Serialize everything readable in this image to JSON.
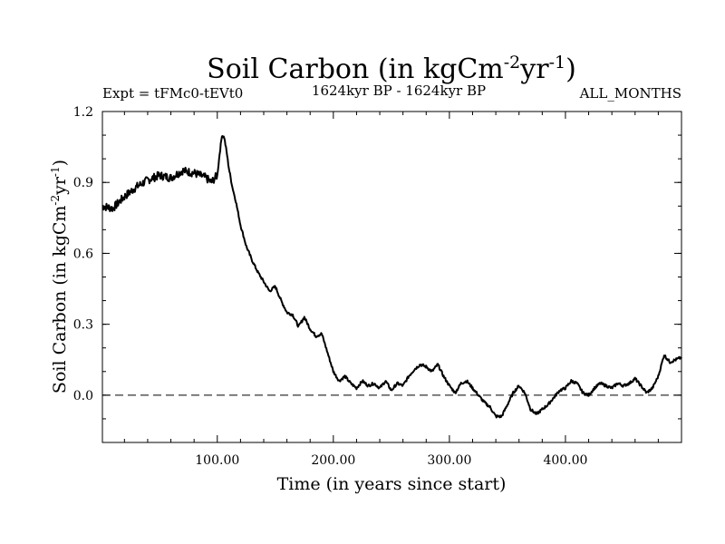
{
  "chart_data": {
    "type": "line",
    "title": "Soil Carbon (in kgCm",
    "title_sup1": "-2",
    "title_mid": "yr",
    "title_sup2": "-1",
    "title_end": ")",
    "subtitle_left": "Expt = tFMc0-tEVt0",
    "subtitle_center": "1624kyr BP - 1624kyr BP",
    "subtitle_right": "ALL_MONTHS",
    "xlabel": "Time (in years since start)",
    "ylabel": "Soil Carbon (in kgCm",
    "ylabel_sup1": "-2",
    "ylabel_mid": "yr",
    "ylabel_sup2": "-1",
    "ylabel_end": ")",
    "xlim": [
      1,
      500
    ],
    "ylim": [
      -0.2,
      1.2
    ],
    "xticks": [
      100,
      200,
      300,
      400
    ],
    "xtick_labels": [
      "100.00",
      "200.00",
      "300.00",
      "400.00"
    ],
    "yticks": [
      0.0,
      0.3,
      0.6,
      0.9,
      1.2
    ],
    "ytick_labels": [
      "0.0",
      "0.3",
      "0.6",
      "0.9",
      "1.2"
    ],
    "reference_line": {
      "y": 0.0,
      "style": "dashed"
    },
    "series": [
      {
        "name": "Soil Carbon",
        "x": [
          1,
          10,
          20,
          30,
          40,
          50,
          60,
          70,
          80,
          90,
          95,
          98,
          100,
          102,
          104,
          106,
          108,
          110,
          113,
          116,
          120,
          125,
          130,
          135,
          140,
          145,
          150,
          155,
          160,
          165,
          170,
          175,
          180,
          185,
          190,
          195,
          200,
          205,
          210,
          215,
          220,
          225,
          230,
          235,
          240,
          245,
          250,
          255,
          260,
          265,
          270,
          275,
          280,
          285,
          290,
          295,
          300,
          305,
          310,
          315,
          320,
          325,
          330,
          335,
          340,
          345,
          350,
          355,
          360,
          365,
          370,
          375,
          380,
          385,
          390,
          395,
          400,
          405,
          410,
          415,
          420,
          425,
          430,
          435,
          440,
          445,
          450,
          455,
          460,
          465,
          470,
          475,
          480,
          485,
          490,
          495,
          500
        ],
        "values": [
          0.8,
          0.79,
          0.84,
          0.88,
          0.91,
          0.93,
          0.92,
          0.95,
          0.94,
          0.92,
          0.9,
          0.92,
          0.93,
          1.02,
          1.1,
          1.09,
          1.03,
          0.96,
          0.88,
          0.82,
          0.72,
          0.63,
          0.57,
          0.52,
          0.48,
          0.44,
          0.46,
          0.4,
          0.35,
          0.34,
          0.29,
          0.33,
          0.28,
          0.25,
          0.26,
          0.18,
          0.1,
          0.06,
          0.08,
          0.05,
          0.03,
          0.06,
          0.04,
          0.05,
          0.03,
          0.06,
          0.02,
          0.05,
          0.04,
          0.08,
          0.11,
          0.13,
          0.12,
          0.1,
          0.13,
          0.08,
          0.04,
          0.01,
          0.05,
          0.06,
          0.03,
          0.0,
          -0.03,
          -0.05,
          -0.09,
          -0.09,
          -0.04,
          0.01,
          0.04,
          0.01,
          -0.06,
          -0.08,
          -0.06,
          -0.04,
          -0.01,
          0.02,
          0.03,
          0.06,
          0.05,
          0.01,
          0.0,
          0.03,
          0.05,
          0.04,
          0.03,
          0.05,
          0.04,
          0.05,
          0.07,
          0.04,
          0.01,
          0.03,
          0.08,
          0.17,
          0.14,
          0.15,
          0.16
        ]
      }
    ]
  }
}
